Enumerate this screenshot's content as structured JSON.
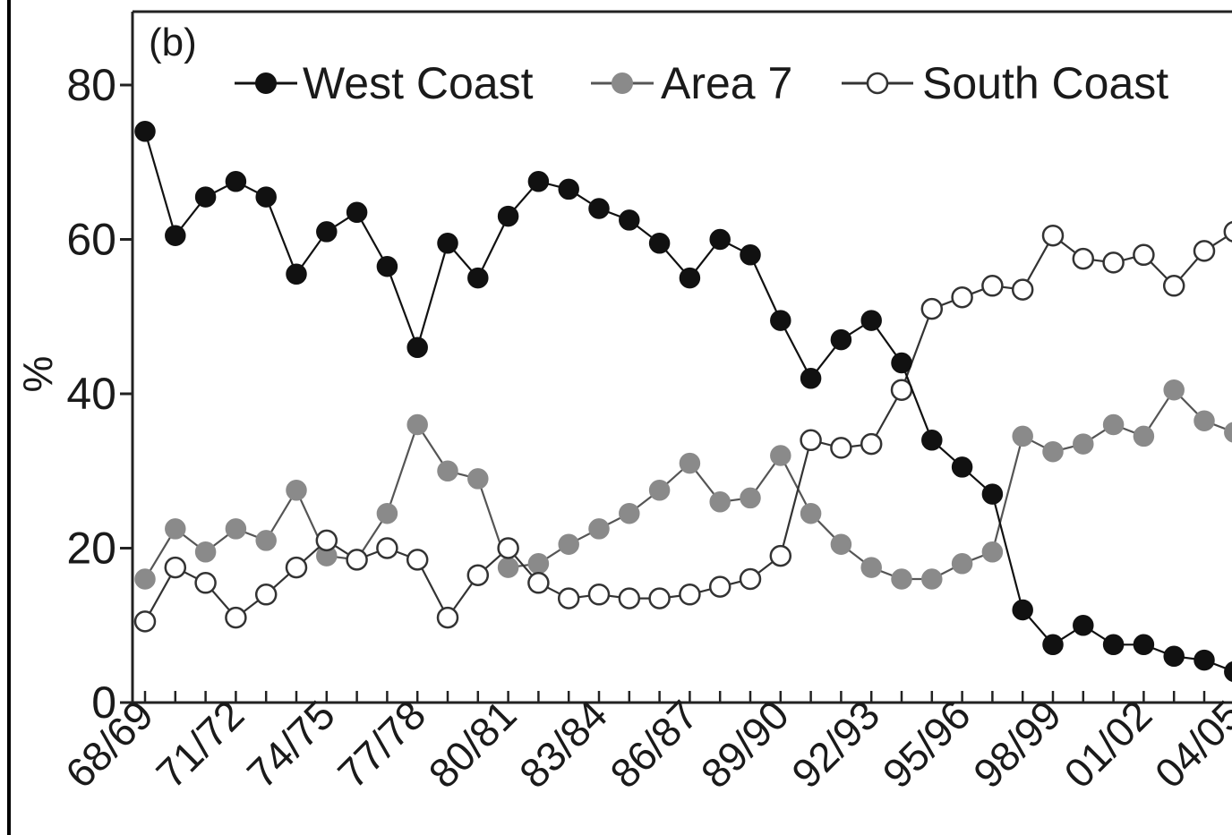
{
  "chart_data": {
    "type": "line",
    "panel_label": "(b)",
    "title": "",
    "xlabel": "",
    "ylabel": "%",
    "ylim": [
      0,
      90
    ],
    "yticks": [
      0,
      20,
      40,
      60,
      80
    ],
    "x": [
      "68/69",
      "69/70",
      "70/71",
      "71/72",
      "72/73",
      "73/74",
      "74/75",
      "75/76",
      "76/77",
      "77/78",
      "78/79",
      "79/80",
      "80/81",
      "81/82",
      "82/83",
      "83/84",
      "84/85",
      "85/86",
      "86/87",
      "87/88",
      "88/89",
      "89/90",
      "90/91",
      "91/92",
      "92/93",
      "93/94",
      "94/95",
      "95/96",
      "96/97",
      "97/98",
      "98/99",
      "99/00",
      "00/01",
      "01/02",
      "02/03",
      "03/04",
      "04/05"
    ],
    "xtick_labels": [
      "68/69",
      "71/72",
      "74/75",
      "77/78",
      "80/81",
      "83/84",
      "86/87",
      "89/90",
      "92/93",
      "95/96",
      "98/99",
      "01/02",
      "04/05"
    ],
    "grid": false,
    "legend_position": "top",
    "series": [
      {
        "name": "West Coast",
        "marker_fill": "#111111",
        "line_color": "#111111",
        "values": [
          74,
          60.5,
          65.5,
          67.5,
          65.5,
          55.5,
          61,
          63.5,
          56.5,
          46,
          59.5,
          55,
          63,
          67.5,
          66.5,
          64,
          62.5,
          59.5,
          55,
          60,
          58,
          49.5,
          42,
          47,
          49.5,
          44,
          34,
          30.5,
          27,
          12,
          7.5,
          10,
          7.5,
          7.5,
          6,
          5.5,
          4
        ]
      },
      {
        "name": "Area 7",
        "marker_fill": "#8a8a8a",
        "line_color": "#555555",
        "values": [
          16,
          22.5,
          19.5,
          22.5,
          21,
          27.5,
          19,
          18.5,
          24.5,
          36,
          30,
          29,
          17.5,
          18,
          20.5,
          22.5,
          24.5,
          27.5,
          31,
          26,
          26.5,
          32,
          24.5,
          20.5,
          17.5,
          16,
          16,
          18,
          19.5,
          34.5,
          32.5,
          33.5,
          36,
          34.5,
          40.5,
          36.5,
          35
        ]
      },
      {
        "name": "South Coast",
        "marker_fill": "#ffffff",
        "line_color": "#333333",
        "values": [
          10.5,
          17.5,
          15.5,
          11,
          14,
          17.5,
          21,
          18.5,
          20,
          18.5,
          11,
          16.5,
          20,
          15.5,
          13.5,
          14,
          13.5,
          13.5,
          14,
          15,
          16,
          19,
          34,
          33,
          33.5,
          40.5,
          51,
          52.5,
          54,
          53.5,
          60.5,
          57.5,
          57,
          58,
          54,
          58.5,
          61
        ]
      }
    ]
  }
}
